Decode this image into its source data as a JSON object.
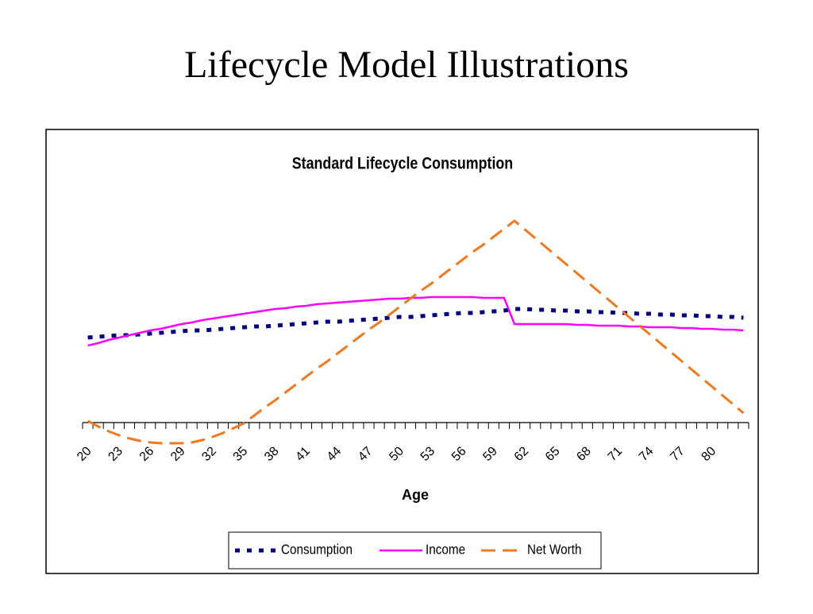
{
  "page_title": "Lifecycle Model Illustrations",
  "chart_data": {
    "type": "line",
    "title": "Standard Lifecycle Consumption",
    "x_label": "Age",
    "categories": [
      "20",
      null,
      null,
      "23",
      null,
      null,
      "26",
      null,
      null,
      "29",
      null,
      null,
      "32",
      null,
      null,
      "35",
      null,
      null,
      "38",
      null,
      null,
      "41",
      null,
      null,
      "44",
      null,
      null,
      "47",
      null,
      null,
      "50",
      null,
      null,
      "53",
      null,
      null,
      "56",
      null,
      null,
      "59",
      null,
      null,
      "62",
      null,
      null,
      "65",
      null,
      null,
      "68",
      null,
      null,
      "71",
      null,
      null,
      "74",
      null,
      null,
      "77",
      null,
      null,
      "80",
      null,
      null,
      null
    ],
    "ylim": [
      -40,
      300
    ],
    "legend": "bottom",
    "series": [
      {
        "name": "Consumption",
        "color": "#000080",
        "dash": "dotted",
        "values": [
          107,
          108,
          109,
          110,
          110,
          111,
          112,
          113,
          114,
          115,
          116,
          116,
          117,
          118,
          119,
          120,
          121,
          121,
          122,
          123,
          124,
          125,
          126,
          127,
          127,
          128,
          129,
          130,
          131,
          132,
          133,
          133,
          134,
          135,
          136,
          137,
          138,
          138,
          139,
          140,
          141,
          143,
          143,
          142,
          142,
          141,
          141,
          140,
          140,
          139,
          139,
          138,
          138,
          137,
          137,
          136,
          136,
          135,
          135,
          134,
          134,
          133,
          133,
          132
        ]
      },
      {
        "name": "Income",
        "color": "#ff00ff",
        "dash": "solid",
        "values": [
          97,
          100,
          104,
          107,
          110,
          113,
          116,
          118,
          121,
          124,
          126,
          129,
          131,
          133,
          135,
          137,
          139,
          141,
          143,
          144,
          146,
          147,
          149,
          150,
          151,
          152,
          153,
          154,
          155,
          156,
          156,
          157,
          157,
          158,
          158,
          158,
          158,
          158,
          157,
          157,
          157,
          124,
          124,
          124,
          124,
          124,
          124,
          123,
          123,
          122,
          122,
          122,
          121,
          121,
          120,
          120,
          120,
          119,
          119,
          118,
          118,
          117,
          117,
          116
        ]
      },
      {
        "name": "Net Worth",
        "color": "#f07820",
        "dash": "dashed",
        "values": [
          2,
          -5,
          -11,
          -16,
          -20,
          -23,
          -25,
          -26,
          -26,
          -26,
          -25,
          -22,
          -18,
          -13,
          -7,
          -1,
          9,
          19,
          28,
          38,
          48,
          58,
          68,
          77,
          87,
          97,
          107,
          117,
          126,
          136,
          146,
          156,
          166,
          175,
          185,
          195,
          205,
          215,
          224,
          234,
          244,
          254,
          243,
          232,
          221,
          210,
          199,
          188,
          177,
          166,
          155,
          144,
          133,
          122,
          111,
          100,
          89,
          78,
          67,
          56,
          45,
          34,
          23,
          12
        ]
      }
    ]
  }
}
